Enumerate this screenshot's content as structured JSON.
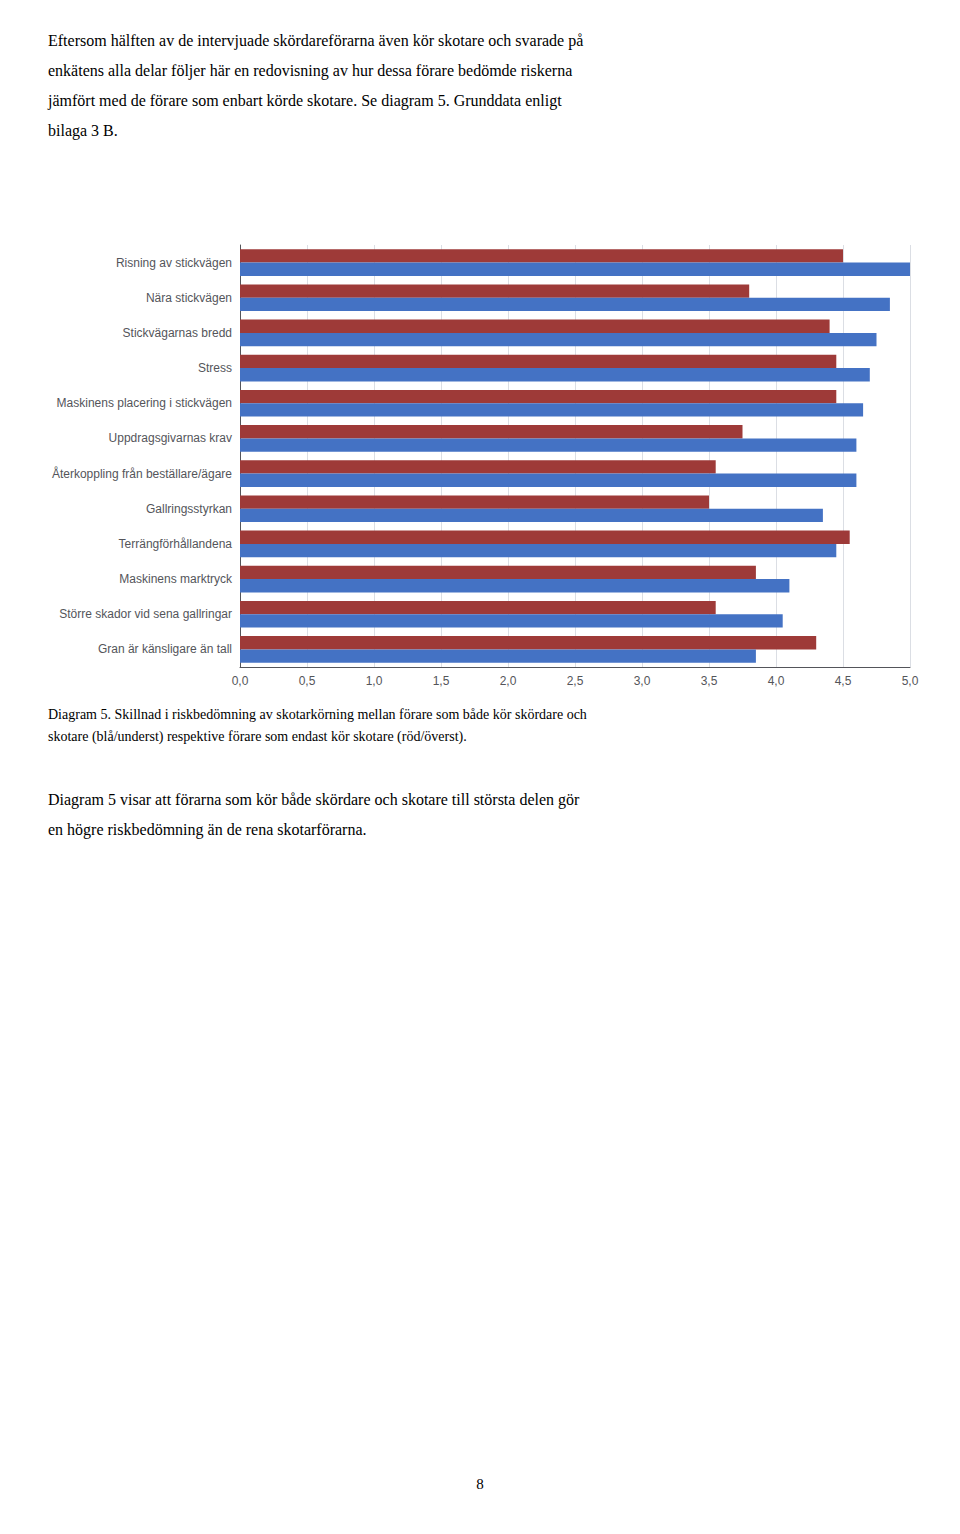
{
  "text_above": [
    "Eftersom hälften av de intervjuade skördareförarna även kör skotare och svarade på",
    "enkätens alla delar följer här en redovisning av hur dessa förare bedömde riskerna",
    "jämfört med de förare som enbart körde skotare. Se diagram 5. Grunddata enligt",
    "bilaga 3 B."
  ],
  "chart_data": {
    "type": "bar",
    "orientation": "horizontal",
    "caption": [
      "Diagram 5. Skillnad i riskbedömning av skotarkörning mellan förare som både kör skördare och",
      "skotare (blå/underst) respektive förare som endast kör skotare (röd/överst)."
    ],
    "categories": [
      "Risning av stickvägen",
      "Nära stickvägen",
      "Stickvägarnas bredd",
      "Stress",
      "Maskinens placering i stickvägen",
      "Uppdragsgivarnas krav",
      "Återkoppling från beställare/ägare",
      "Gallringsstyrkan",
      "Terrängförhållandena",
      "Maskinens marktryck",
      "Större skador vid sena gallringar",
      "Gran är känsligare än tall"
    ],
    "series": [
      {
        "color": "#9E3A38",
        "values": [
          4.5,
          3.8,
          4.4,
          4.45,
          4.45,
          3.75,
          3.55,
          3.5,
          4.55,
          3.85,
          3.55,
          4.3
        ]
      },
      {
        "color": "#4472C4",
        "values": [
          5.0,
          4.85,
          4.75,
          4.7,
          4.65,
          4.6,
          4.6,
          4.35,
          4.45,
          4.1,
          4.05,
          3.85
        ]
      }
    ],
    "xlim": [
      0.0,
      5.0
    ],
    "xticks": [
      {
        "value": 0.0,
        "label": "0,0"
      },
      {
        "value": 0.5,
        "label": "0,5"
      },
      {
        "value": 1.0,
        "label": "1,0"
      },
      {
        "value": 1.5,
        "label": "1,5"
      },
      {
        "value": 2.0,
        "label": "2,0"
      },
      {
        "value": 2.5,
        "label": "2,5"
      },
      {
        "value": 3.0,
        "label": "3,0"
      },
      {
        "value": 3.5,
        "label": "3,5"
      },
      {
        "value": 4.0,
        "label": "4,0"
      },
      {
        "value": 4.5,
        "label": "4,5"
      },
      {
        "value": 5.0,
        "label": "5,0"
      }
    ],
    "grid": true
  },
  "text_below": [
    "Diagram 5 visar att förarna som kör både skördare och skotare till största delen gör",
    "en högre riskbedömning än de rena skotarförarna."
  ],
  "page_number": "8"
}
